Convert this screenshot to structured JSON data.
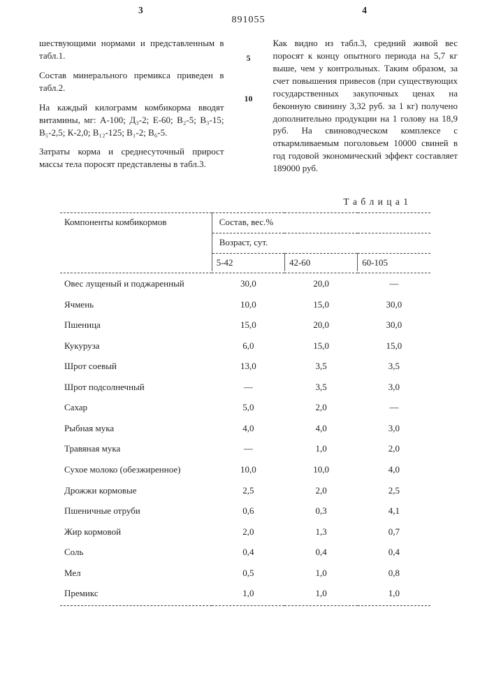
{
  "page": {
    "left_col_marker": "3",
    "right_col_marker": "4",
    "doc_number": "891055",
    "marker5": "5",
    "marker10": "10"
  },
  "left_paragraphs": {
    "p1": "шествующими нормами и представленным в табл.1.",
    "p2": "Состав минерального премикса приведен в табл.2.",
    "p3": "На каждый килограмм комбикорма вводят витамины, мг: A-100; Д₃-2; Е-60; В₂-5; В₃-15; В₅-2,5; К-2,0; В₁₂-125; В₁-2; В₆-5.",
    "p4": "Затраты корма и среднесуточный прирост массы тела поросят представлены в табл.3."
  },
  "right_paragraphs": {
    "p1": "Как видно из табл.3, средний живой вес поросят к концу опытного периода на 5,7 кг выше, чем у контрольных. Таким образом, за счет повышения привесов (при существующих государственных закупочных ценах на беконную свинину 3,32 руб. за 1 кг) получено дополнительно продукции на 1 голову на 18,9 руб. На свиноводческом комплексе с откармливаемым поголовьем 10000 свиней в год годовой экономический эффект составляет 189000 руб."
  },
  "table": {
    "title": "Т а б л и ц а   1",
    "header": {
      "components": "Компоненты комбикормов",
      "composition": "Состав, вес.%",
      "age": "Возраст, сут.",
      "c1": "5-42",
      "c2": "42-60",
      "c3": "60-105"
    },
    "rows": [
      {
        "name": "Овес лущеный и поджаренный",
        "v1": "30,0",
        "v2": "20,0",
        "v3": "—"
      },
      {
        "name": "Ячмень",
        "v1": "10,0",
        "v2": "15,0",
        "v3": "30,0"
      },
      {
        "name": "Пшеница",
        "v1": "15,0",
        "v2": "20,0",
        "v3": "30,0"
      },
      {
        "name": "Кукуруза",
        "v1": "6,0",
        "v2": "15,0",
        "v3": "15,0"
      },
      {
        "name": "Шрот соевый",
        "v1": "13,0",
        "v2": "3,5",
        "v3": "3,5"
      },
      {
        "name": "Шрот подсолнечный",
        "v1": "—",
        "v2": "3,5",
        "v3": "3,0"
      },
      {
        "name": "Сахар",
        "v1": "5,0",
        "v2": "2,0",
        "v3": "—"
      },
      {
        "name": "Рыбная мука",
        "v1": "4,0",
        "v2": "4,0",
        "v3": "3,0"
      },
      {
        "name": "Травяная мука",
        "v1": "—",
        "v2": "1,0",
        "v3": "2,0"
      },
      {
        "name": "Сухое молоко (обезжиренное)",
        "v1": "10,0",
        "v2": "10,0",
        "v3": "4,0"
      },
      {
        "name": "Дрожжи кормовые",
        "v1": "2,5",
        "v2": "2,0",
        "v3": "2,5"
      },
      {
        "name": "Пшеничные отруби",
        "v1": "0,6",
        "v2": "0,3",
        "v3": "4,1"
      },
      {
        "name": "Жир кормовой",
        "v1": "2,0",
        "v2": "1,3",
        "v3": "0,7"
      },
      {
        "name": "Соль",
        "v1": "0,4",
        "v2": "0,4",
        "v3": "0,4"
      },
      {
        "name": "Мел",
        "v1": "0,5",
        "v2": "1,0",
        "v3": "0,8"
      },
      {
        "name": "Премикс",
        "v1": "1,0",
        "v2": "1,0",
        "v3": "1,0"
      }
    ]
  }
}
